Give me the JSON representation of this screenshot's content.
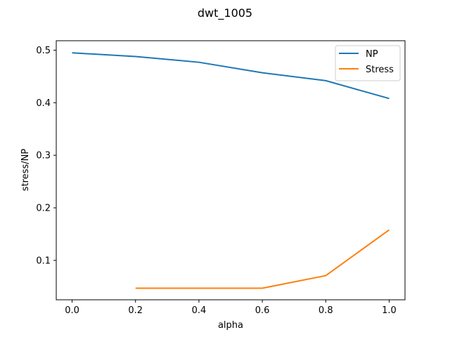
{
  "chart_data": {
    "type": "line",
    "title": "dwt_1005",
    "xlabel": "alpha",
    "ylabel": "stress/NP",
    "xlim": [
      -0.05,
      1.05
    ],
    "ylim": [
      0.025,
      0.518
    ],
    "xticks": [
      0.0,
      0.2,
      0.4,
      0.6,
      0.8,
      1.0
    ],
    "xtick_labels": [
      "0.0",
      "0.2",
      "0.4",
      "0.6",
      "0.8",
      "1.0"
    ],
    "yticks": [
      0.1,
      0.2,
      0.3,
      0.4,
      0.5
    ],
    "ytick_labels": [
      "0.1",
      "0.2",
      "0.3",
      "0.4",
      "0.5"
    ],
    "grid": false,
    "legend_position": "upper right",
    "series": [
      {
        "name": "NP",
        "color": "#1f77b4",
        "x": [
          0.0,
          0.2,
          0.4,
          0.6,
          0.8,
          1.0
        ],
        "y": [
          0.495,
          0.488,
          0.477,
          0.457,
          0.442,
          0.408
        ]
      },
      {
        "name": "Stress",
        "color": "#ff7f0e",
        "x": [
          0.2,
          0.4,
          0.6,
          0.8,
          1.0
        ],
        "y": [
          0.047,
          0.047,
          0.047,
          0.071,
          0.158
        ]
      }
    ]
  }
}
